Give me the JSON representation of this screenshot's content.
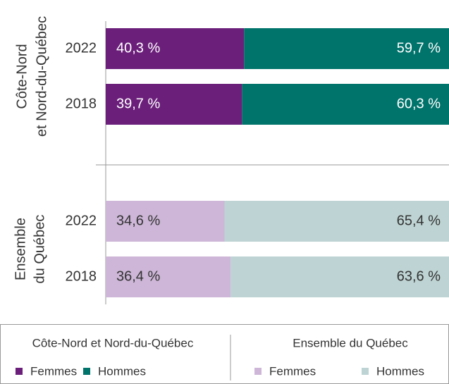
{
  "chart_data": {
    "type": "stacked_barh",
    "xlim": [
      0,
      100
    ],
    "groups": [
      {
        "label": [
          "Côte-Nord",
          "et Nord-du-Québec"
        ],
        "legend_title": "Côte-Nord et Nord-du-Québec",
        "categories": [
          "2022",
          "2018"
        ],
        "series": [
          {
            "name": "Femmes",
            "color": "#6b1f7b",
            "label_color": "#ffffff",
            "values": [
              40.3,
              39.7
            ],
            "value_labels": [
              "40,3 %",
              "39,7 %"
            ]
          },
          {
            "name": "Hommes",
            "color": "#00736b",
            "label_color": "#ffffff",
            "values": [
              59.7,
              60.3
            ],
            "value_labels": [
              "59,7 %",
              "60,3 %"
            ]
          }
        ]
      },
      {
        "label": [
          "Ensemble",
          "du Québec"
        ],
        "legend_title": "Ensemble du Québec",
        "categories": [
          "2022",
          "2018"
        ],
        "series": [
          {
            "name": "Femmes",
            "color": "#cdb6d7",
            "label_color": "#333333",
            "values": [
              34.6,
              36.4
            ],
            "value_labels": [
              "34,6 %",
              "36,4 %"
            ]
          },
          {
            "name": "Hommes",
            "color": "#bed3d3",
            "label_color": "#333333",
            "values": [
              65.4,
              63.6
            ],
            "value_labels": [
              "65,4 %",
              "63,6 %"
            ]
          }
        ]
      }
    ]
  }
}
